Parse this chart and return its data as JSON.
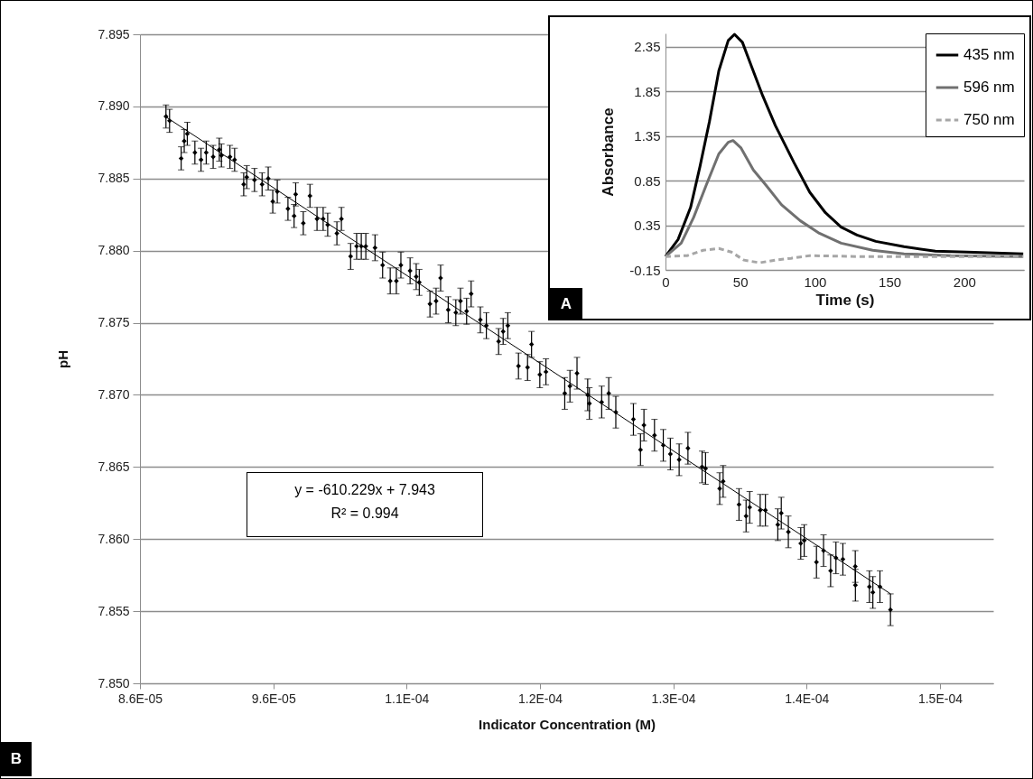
{
  "chart_data": [
    {
      "type": "scatter",
      "xlabel": "Indicator Concentration (M)",
      "ylabel": "pH",
      "annotations": [
        "y = -610.229x + 7.943",
        "R² = 0.994",
        "B"
      ],
      "xlim": [
        8.6e-05,
        0.00015
      ],
      "xticks": [
        {
          "value": 8.6e-05,
          "label": "8.6E-05"
        },
        {
          "value": 9.6e-05,
          "label": "9.6E-05"
        },
        {
          "value": 0.000106,
          "label": "1.1E-04"
        },
        {
          "value": 0.000116,
          "label": "1.2E-04"
        },
        {
          "value": 0.000126,
          "label": "1.3E-04"
        },
        {
          "value": 0.000136,
          "label": "1.4E-04"
        },
        {
          "value": 0.000146,
          "label": "1.5E-04"
        }
      ],
      "ylim": [
        7.85,
        7.895
      ],
      "yticks": [
        {
          "value": 7.85,
          "label": "7.850"
        },
        7.855,
        {
          "value": 7.86,
          "label": "7.860"
        },
        7.865,
        {
          "value": 7.87,
          "label": "7.870"
        },
        7.875,
        {
          "value": 7.88,
          "label": "7.880"
        },
        7.885,
        {
          "value": 7.89,
          "label": "7.890"
        },
        7.895
      ],
      "grid": "y",
      "marker": "diamond",
      "series": [
        {
          "color": "#000000",
          "x": [
            8.795e-05,
            8.822e-05,
            8.909e-05,
            8.932e-05,
            8.955e-05,
            9.012e-05,
            9.058e-05,
            9.097e-05,
            9.149e-05,
            9.195e-05,
            9.211e-05,
            9.275e-05,
            9.31e-05,
            9.378e-05,
            9.401e-05,
            9.459e-05,
            9.516e-05,
            9.562e-05,
            9.596e-05,
            9.63e-05,
            9.71e-05,
            9.756e-05,
            9.768e-05,
            9.825e-05,
            9.875e-05,
            9.928e-05,
            9.974e-05,
            0.00010008,
            0.00010077,
            0.00010111,
            0.0001018,
            0.00010225,
            0.0001026,
            0.00010294,
            0.00010363,
            0.0001042,
            0.00010477,
            0.00010523,
            0.00010557,
            0.00010626,
            0.00010672,
            0.00010695,
            0.00010775,
            0.00010821,
            0.00010855,
            0.00010912,
            0.00010969,
            0.00011004,
            0.0001105,
            0.00011084,
            0.00011153,
            0.00011198,
            0.0001129,
            0.00011324,
            0.00011359,
            0.00011439,
            0.00011507,
            0.00011537,
            0.00011599,
            0.00011645,
            0.00011786,
            0.00011825,
            0.00011878,
            0.00011958,
            0.00011971,
            0.00012063,
            0.00012116,
            0.00012169,
            0.00012301,
            0.00012354,
            0.0001238,
            0.00012459,
            0.00012525,
            0.00012578,
            0.00012644,
            0.0001271,
            0.00012816,
            0.00012842,
            0.00012948,
            0.00012974,
            0.00013093,
            0.00013146,
            0.00013173,
            0.00013252,
            0.00013291,
            0.00013384,
            0.0001341,
            0.00013463,
            0.00013556,
            0.00013582,
            0.00013674,
            0.00013727,
            0.0001378,
            0.0001382,
            0.00013872,
            0.00013965,
            0.00013966,
            0.00014071,
            0.00014097,
            0.0001415,
            0.00014229
          ],
          "values": [
            7.8893,
            7.889,
            7.8864,
            7.8876,
            7.8881,
            7.8868,
            7.8863,
            7.8868,
            7.8865,
            7.887,
            7.8866,
            7.8865,
            7.8863,
            7.8846,
            7.8851,
            7.8849,
            7.8846,
            7.885,
            7.8834,
            7.8841,
            7.8829,
            7.8824,
            7.8839,
            7.8819,
            7.8838,
            7.8822,
            7.8822,
            7.8818,
            7.8812,
            7.8822,
            7.8796,
            7.8803,
            7.8803,
            7.8803,
            7.8802,
            7.879,
            7.8779,
            7.8779,
            7.879,
            7.8786,
            7.8782,
            7.8778,
            7.8763,
            7.8765,
            7.8781,
            7.8759,
            7.8757,
            7.8765,
            7.8758,
            7.877,
            7.8752,
            7.8748,
            7.8737,
            7.8744,
            7.8748,
            7.872,
            7.8719,
            7.8735,
            7.8714,
            7.8716,
            7.8701,
            7.8706,
            7.8715,
            7.87,
            7.8694,
            7.8695,
            7.8701,
            7.8688,
            7.8683,
            7.8662,
            7.8679,
            7.8672,
            7.8665,
            7.8659,
            7.8655,
            7.8663,
            7.865,
            7.8649,
            7.8635,
            7.864,
            7.8624,
            7.8616,
            7.8622,
            7.862,
            7.862,
            7.861,
            7.8618,
            7.8605,
            7.8597,
            7.8599,
            7.8584,
            7.8592,
            7.8578,
            7.8587,
            7.8586,
            7.8581,
            7.8568,
            7.8567,
            7.8563,
            7.8567,
            7.8551
          ],
          "errors": [
            0.0008,
            0.0008,
            0.0008,
            0.0008,
            0.0008,
            0.0008,
            0.0008,
            0.0008,
            0.0008,
            0.0008,
            0.0008,
            0.0008,
            0.0008,
            0.0008,
            0.0008,
            0.0008,
            0.0008,
            0.0008,
            0.0008,
            0.0008,
            0.0008,
            0.0008,
            0.0008,
            0.0008,
            0.0008,
            0.0008,
            0.0008,
            0.0008,
            0.0008,
            0.0008,
            0.0009,
            0.0009,
            0.0009,
            0.0009,
            0.0009,
            0.0009,
            0.0009,
            0.0009,
            0.0009,
            0.0009,
            0.0009,
            0.0009,
            0.0009,
            0.0009,
            0.0009,
            0.0009,
            0.0009,
            0.0009,
            0.0009,
            0.0009,
            0.0009,
            0.0009,
            0.0009,
            0.0009,
            0.0009,
            0.0009,
            0.0009,
            0.0009,
            0.0009,
            0.0009,
            0.0011,
            0.0011,
            0.0011,
            0.0011,
            0.0011,
            0.0011,
            0.0011,
            0.0011,
            0.0011,
            0.0011,
            0.0011,
            0.0011,
            0.0011,
            0.0011,
            0.0011,
            0.0011,
            0.0011,
            0.0011,
            0.0011,
            0.0011,
            0.0011,
            0.0011,
            0.0011,
            0.0011,
            0.0011,
            0.0011,
            0.0011,
            0.0011,
            0.0011,
            0.0011,
            0.0011,
            0.0011,
            0.0011,
            0.0011,
            0.0011,
            0.0011,
            0.0011,
            0.0011,
            0.0011,
            0.0011,
            0.0011
          ]
        },
        {
          "type": "line",
          "marker": "none",
          "color": "#000000",
          "x": [
            8.79e-05,
            0.0001423
          ],
          "values": [
            7.8893,
            7.8562
          ]
        }
      ]
    },
    {
      "type": "line",
      "xlabel": "Time (s)",
      "ylabel": "Absorbance",
      "annotations": [
        "A"
      ],
      "xlim": [
        0,
        240
      ],
      "xticks": [
        0,
        50,
        100,
        150,
        200
      ],
      "ylim": [
        -0.15,
        2.5
      ],
      "yticks": [
        -0.15,
        0.35,
        0.85,
        1.35,
        1.85,
        2.35
      ],
      "grid": "y",
      "legend": "top right",
      "series": [
        {
          "name": "435 nm",
          "color": "#000000",
          "line_style": "solid",
          "x": [
            0,
            8.4,
            16.8,
            23.1,
            29.4,
            35.7,
            42,
            46.2,
            51.5,
            57.8,
            65.1,
            73.5,
            86.1,
            96.6,
            107.1,
            117.6,
            128.2,
            140.8,
            159.7,
            180.7,
            201.7,
            239.5
          ],
          "values": [
            0,
            0.19,
            0.55,
            1.01,
            1.51,
            2.08,
            2.42,
            2.49,
            2.4,
            2.12,
            1.8,
            1.47,
            1.05,
            0.72,
            0.49,
            0.33,
            0.24,
            0.17,
            0.11,
            0.06,
            0.05,
            0.03
          ]
        },
        {
          "name": "596 nm",
          "color": "#707070",
          "line_style": "solid",
          "x": [
            0,
            10.5,
            18.9,
            27.3,
            35.7,
            42,
            45.2,
            50.4,
            58.8,
            67.2,
            77.7,
            90.3,
            103,
            117.6,
            138.7,
            159.7,
            191.2,
            239.5
          ],
          "values": [
            0,
            0.15,
            0.44,
            0.8,
            1.15,
            1.28,
            1.3,
            1.22,
            0.97,
            0.8,
            0.58,
            0.4,
            0.26,
            0.15,
            0.07,
            0.03,
            0.01,
            0
          ]
        },
        {
          "name": "750 nm",
          "color": "#a6a6a6",
          "line_style": "dashed",
          "x": [
            0,
            14.7,
            25.2,
            35.7,
            44.1,
            52.5,
            63,
            73.5,
            84,
            96.6,
            128.2,
            170.2,
            239.5
          ],
          "values": [
            0,
            0.01,
            0.07,
            0.09,
            0.05,
            -0.04,
            -0.07,
            -0.04,
            -0.02,
            0.01,
            0,
            0,
            0
          ]
        }
      ]
    }
  ]
}
